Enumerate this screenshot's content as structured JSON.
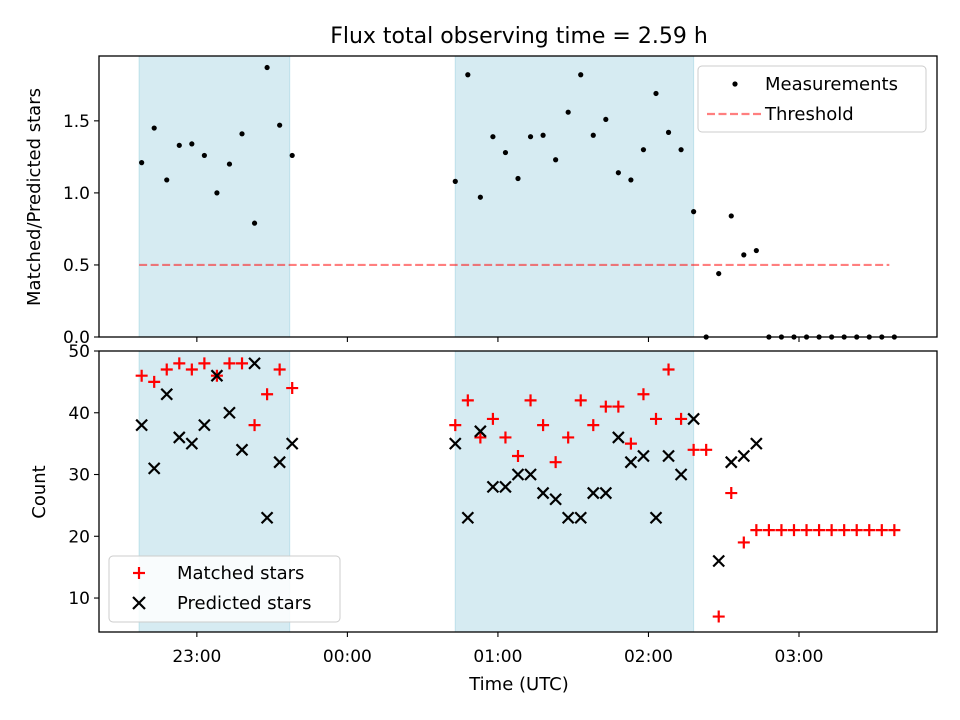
{
  "title": "Flux total observing time = 2.59 h",
  "colors": {
    "shade": "#add8e6",
    "measurement": "#000000",
    "threshold": "#ff0000",
    "matched": "#ff0000",
    "predicted": "#000000"
  },
  "chart_data": [
    {
      "type": "scatter",
      "panel": "top",
      "ylabel": "Matched/Predicted stars",
      "xlabel": "",
      "xlim": [
        "22:21",
        "03:55"
      ],
      "ylim": [
        0,
        1.95
      ],
      "yticks": [
        0.0,
        0.5,
        1.0,
        1.5
      ],
      "ytick_labels": [
        "0.0",
        "0.5",
        "1.0",
        "1.5"
      ],
      "xticks": [
        "23:00",
        "00:00",
        "01:00",
        "02:00",
        "03:00"
      ],
      "shaded_intervals": [
        [
          "22:37",
          "23:37"
        ],
        [
          "00:43",
          "02:18"
        ]
      ],
      "legend_position": "upper right",
      "legend": [
        "Measurements",
        "Threshold"
      ],
      "threshold": {
        "name": "Threshold",
        "y": 0.5,
        "x_range": [
          "22:37",
          "03:36"
        ]
      },
      "series": [
        {
          "name": "Measurements",
          "marker": "dot",
          "points": [
            [
              "22:38",
              1.21
            ],
            [
              "22:43",
              1.45
            ],
            [
              "22:48",
              1.09
            ],
            [
              "22:53",
              1.33
            ],
            [
              "22:58",
              1.34
            ],
            [
              "23:03",
              1.26
            ],
            [
              "23:08",
              1.0
            ],
            [
              "23:13",
              1.2
            ],
            [
              "23:18",
              1.41
            ],
            [
              "23:23",
              0.79
            ],
            [
              "23:28",
              1.87
            ],
            [
              "23:33",
              1.47
            ],
            [
              "23:38",
              1.26
            ],
            [
              "00:43",
              1.08
            ],
            [
              "00:48",
              1.82
            ],
            [
              "00:53",
              0.97
            ],
            [
              "00:58",
              1.39
            ],
            [
              "01:03",
              1.28
            ],
            [
              "01:08",
              1.1
            ],
            [
              "01:13",
              1.39
            ],
            [
              "01:18",
              1.4
            ],
            [
              "01:23",
              1.23
            ],
            [
              "01:28",
              1.56
            ],
            [
              "01:33",
              1.82
            ],
            [
              "01:38",
              1.4
            ],
            [
              "01:43",
              1.51
            ],
            [
              "01:48",
              1.14
            ],
            [
              "01:53",
              1.09
            ],
            [
              "01:58",
              1.3
            ],
            [
              "02:03",
              1.69
            ],
            [
              "02:08",
              1.42
            ],
            [
              "02:13",
              1.3
            ],
            [
              "02:18",
              0.87
            ],
            [
              "02:23",
              0.0
            ],
            [
              "02:28",
              0.44
            ],
            [
              "02:33",
              0.84
            ],
            [
              "02:38",
              0.57
            ],
            [
              "02:43",
              0.6
            ],
            [
              "02:48",
              0.0
            ],
            [
              "02:53",
              0.0
            ],
            [
              "02:58",
              0.0
            ],
            [
              "03:03",
              0.0
            ],
            [
              "03:08",
              0.0
            ],
            [
              "03:13",
              0.0
            ],
            [
              "03:18",
              0.0
            ],
            [
              "03:23",
              0.0
            ],
            [
              "03:28",
              0.0
            ],
            [
              "03:33",
              0.0
            ],
            [
              "03:38",
              0.0
            ]
          ]
        }
      ]
    },
    {
      "type": "scatter",
      "panel": "bottom",
      "ylabel": "Count",
      "xlabel": "Time (UTC)",
      "xlim": [
        "22:21",
        "03:55"
      ],
      "ylim": [
        4.5,
        50
      ],
      "yticks": [
        10,
        20,
        30,
        40,
        50
      ],
      "ytick_labels": [
        "10",
        "20",
        "30",
        "40",
        "50"
      ],
      "xticks": [
        "23:00",
        "00:00",
        "01:00",
        "02:00",
        "03:00"
      ],
      "xtick_labels": [
        "23:00",
        "00:00",
        "01:00",
        "02:00",
        "03:00"
      ],
      "shaded_intervals": [
        [
          "22:37",
          "23:37"
        ],
        [
          "00:43",
          "02:18"
        ]
      ],
      "legend_position": "lower left",
      "legend": [
        "Matched stars",
        "Predicted stars"
      ],
      "series": [
        {
          "name": "Matched stars",
          "marker": "plus",
          "points": [
            [
              "22:38",
              46
            ],
            [
              "22:43",
              45
            ],
            [
              "22:48",
              47
            ],
            [
              "22:53",
              48
            ],
            [
              "22:58",
              47
            ],
            [
              "23:03",
              48
            ],
            [
              "23:08",
              46
            ],
            [
              "23:13",
              48
            ],
            [
              "23:18",
              48
            ],
            [
              "23:23",
              38
            ],
            [
              "23:28",
              43
            ],
            [
              "23:33",
              47
            ],
            [
              "23:38",
              44
            ],
            [
              "00:43",
              38
            ],
            [
              "00:48",
              42
            ],
            [
              "00:53",
              36
            ],
            [
              "00:58",
              39
            ],
            [
              "01:03",
              36
            ],
            [
              "01:08",
              33
            ],
            [
              "01:13",
              42
            ],
            [
              "01:18",
              38
            ],
            [
              "01:23",
              32
            ],
            [
              "01:28",
              36
            ],
            [
              "01:33",
              42
            ],
            [
              "01:38",
              38
            ],
            [
              "01:43",
              41
            ],
            [
              "01:48",
              41
            ],
            [
              "01:53",
              35
            ],
            [
              "01:58",
              43
            ],
            [
              "02:03",
              39
            ],
            [
              "02:08",
              47
            ],
            [
              "02:13",
              39
            ],
            [
              "02:18",
              34
            ],
            [
              "02:23",
              34
            ],
            [
              "02:28",
              7
            ],
            [
              "02:33",
              27
            ],
            [
              "02:38",
              19
            ],
            [
              "02:43",
              21
            ],
            [
              "02:48",
              21
            ],
            [
              "02:53",
              21
            ],
            [
              "02:58",
              21
            ],
            [
              "03:03",
              21
            ],
            [
              "03:08",
              21
            ],
            [
              "03:13",
              21
            ],
            [
              "03:18",
              21
            ],
            [
              "03:23",
              21
            ],
            [
              "03:28",
              21
            ],
            [
              "03:33",
              21
            ],
            [
              "03:38",
              21
            ]
          ]
        },
        {
          "name": "Predicted stars",
          "marker": "x",
          "points": [
            [
              "22:38",
              38
            ],
            [
              "22:43",
              31
            ],
            [
              "22:48",
              43
            ],
            [
              "22:53",
              36
            ],
            [
              "22:58",
              35
            ],
            [
              "23:03",
              38
            ],
            [
              "23:08",
              46
            ],
            [
              "23:13",
              40
            ],
            [
              "23:18",
              34
            ],
            [
              "23:23",
              48
            ],
            [
              "23:28",
              23
            ],
            [
              "23:33",
              32
            ],
            [
              "23:38",
              35
            ],
            [
              "00:43",
              35
            ],
            [
              "00:48",
              23
            ],
            [
              "00:53",
              37
            ],
            [
              "00:58",
              28
            ],
            [
              "01:03",
              28
            ],
            [
              "01:08",
              30
            ],
            [
              "01:13",
              30
            ],
            [
              "01:18",
              27
            ],
            [
              "01:23",
              26
            ],
            [
              "01:28",
              23
            ],
            [
              "01:33",
              23
            ],
            [
              "01:38",
              27
            ],
            [
              "01:43",
              27
            ],
            [
              "01:48",
              36
            ],
            [
              "01:53",
              32
            ],
            [
              "01:58",
              33
            ],
            [
              "02:03",
              23
            ],
            [
              "02:08",
              33
            ],
            [
              "02:13",
              30
            ],
            [
              "02:18",
              39
            ],
            [
              "02:28",
              16
            ],
            [
              "02:33",
              32
            ],
            [
              "02:38",
              33
            ],
            [
              "02:43",
              35
            ]
          ]
        }
      ]
    }
  ]
}
